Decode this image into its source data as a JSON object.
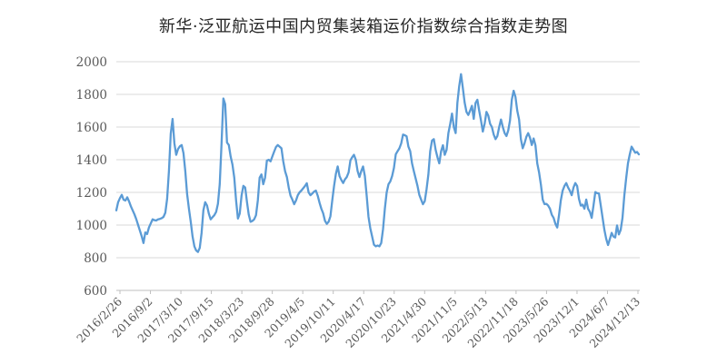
{
  "title": "新华·泛亚航运中国内贸集装箱运价指数综合指数走势图",
  "colors": {
    "line": "#5B9BD5",
    "grid": "#D9D9D9",
    "axis": "#BFBFBF",
    "tick_label": "#595959",
    "title": "#262626"
  },
  "chart_data": {
    "type": "line",
    "title": "新华·泛亚航运中国内贸集装箱运价指数综合指数走势图",
    "xlabel": "",
    "ylabel": "",
    "x_start": "2016/2/26",
    "x_end": "2024/12/13",
    "xtick_labels": [
      "2016/2/26",
      "2016/9/2",
      "2017/3/10",
      "2017/9/15",
      "2018/3/23",
      "2018/9/28",
      "2019/4/5",
      "2019/10/11",
      "2020/4/17",
      "2020/10/23",
      "2021/4/30",
      "2021/11/5",
      "2022/5/13",
      "2022/11/18",
      "2023/5/26",
      "2023/12/1",
      "2024/6/7",
      "2024/12/13"
    ],
    "ylim": [
      600,
      2000
    ],
    "yticks": [
      600,
      800,
      1000,
      1200,
      1400,
      1600,
      1800,
      2000
    ],
    "grid": true,
    "legend": "none",
    "values": [
      1090,
      1140,
      1165,
      1185,
      1155,
      1150,
      1170,
      1145,
      1115,
      1090,
      1065,
      1035,
      1000,
      965,
      930,
      890,
      955,
      945,
      985,
      1010,
      1035,
      1030,
      1028,
      1035,
      1038,
      1042,
      1050,
      1075,
      1160,
      1330,
      1560,
      1650,
      1500,
      1430,
      1465,
      1482,
      1490,
      1440,
      1330,
      1190,
      1100,
      1020,
      930,
      870,
      845,
      835,
      860,
      950,
      1090,
      1140,
      1120,
      1070,
      1035,
      1048,
      1060,
      1080,
      1130,
      1250,
      1500,
      1775,
      1740,
      1505,
      1490,
      1420,
      1370,
      1290,
      1150,
      1040,
      1070,
      1180,
      1240,
      1230,
      1140,
      1065,
      1020,
      1025,
      1035,
      1060,
      1150,
      1290,
      1310,
      1250,
      1290,
      1395,
      1400,
      1390,
      1420,
      1450,
      1478,
      1490,
      1480,
      1470,
      1390,
      1330,
      1294,
      1230,
      1180,
      1156,
      1128,
      1150,
      1183,
      1200,
      1211,
      1225,
      1239,
      1256,
      1200,
      1183,
      1193,
      1205,
      1211,
      1180,
      1137,
      1100,
      1072,
      1026,
      1007,
      1020,
      1054,
      1150,
      1239,
      1313,
      1359,
      1300,
      1276,
      1257,
      1280,
      1294,
      1322,
      1396,
      1415,
      1430,
      1400,
      1331,
      1294,
      1330,
      1359,
      1300,
      1180,
      1050,
      980,
      930,
      880,
      870,
      875,
      870,
      890,
      975,
      1100,
      1200,
      1250,
      1267,
      1300,
      1350,
      1433,
      1452,
      1470,
      1500,
      1554,
      1550,
      1544,
      1480,
      1452,
      1378,
      1330,
      1285,
      1240,
      1185,
      1156,
      1128,
      1146,
      1220,
      1310,
      1452,
      1517,
      1526,
      1460,
      1415,
      1378,
      1452,
      1489,
      1430,
      1460,
      1563,
      1619,
      1683,
      1600,
      1563,
      1748,
      1850,
      1924,
      1840,
      1750,
      1693,
      1674,
      1700,
      1730,
      1650,
      1748,
      1767,
      1700,
      1640,
      1572,
      1620,
      1693,
      1670,
      1620,
      1600,
      1554,
      1526,
      1545,
      1600,
      1646,
      1600,
      1563,
      1545,
      1580,
      1640,
      1767,
      1822,
      1785,
      1700,
      1646,
      1526,
      1470,
      1500,
      1540,
      1563,
      1535,
      1490,
      1530,
      1489,
      1378,
      1322,
      1248,
      1156,
      1128,
      1130,
      1119,
      1100,
      1063,
      1044,
      1007,
      985,
      1063,
      1150,
      1210,
      1239,
      1257,
      1230,
      1210,
      1183,
      1230,
      1257,
      1239,
      1160,
      1119,
      1125,
      1100,
      1156,
      1100,
      1081,
      1044,
      1120,
      1202,
      1195,
      1193,
      1119,
      1044,
      970,
      915,
      878,
      915,
      952,
      930,
      924,
      998,
      943,
      970,
      1044,
      1180,
      1285,
      1378,
      1433,
      1480,
      1461,
      1443,
      1448,
      1433
    ]
  }
}
